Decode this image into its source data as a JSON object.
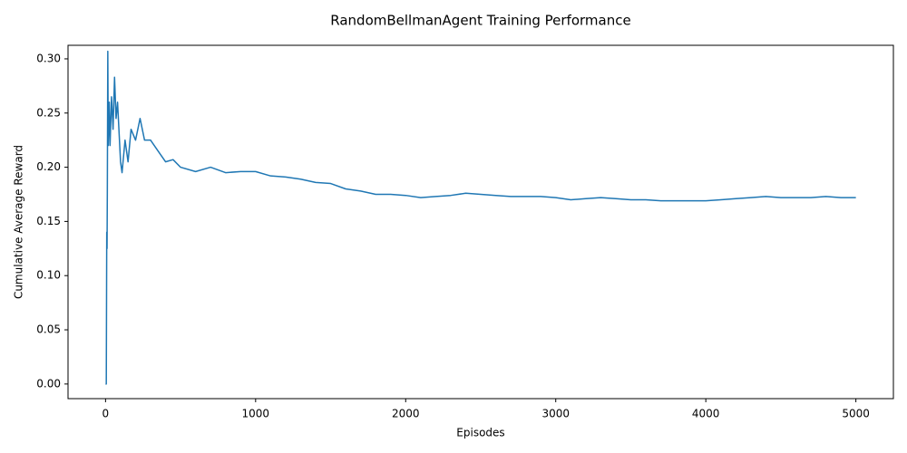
{
  "chart_data": {
    "type": "line",
    "title": "RandomBellmanAgent Training Performance",
    "x_label": "Episodes",
    "y_label": "Cumulative Average Reward",
    "color": "#1f77b4",
    "x": [
      0,
      5,
      8,
      10,
      12,
      15,
      18,
      25,
      30,
      40,
      50,
      60,
      70,
      80,
      100,
      110,
      130,
      150,
      170,
      200,
      230,
      260,
      300,
      350,
      400,
      450,
      500,
      600,
      700,
      800,
      900,
      1000,
      1100,
      1200,
      1300,
      1400,
      1500,
      1600,
      1700,
      1800,
      1900,
      2000,
      2100,
      2200,
      2300,
      2400,
      2500,
      2600,
      2700,
      2800,
      2900,
      3000,
      3100,
      3200,
      3300,
      3400,
      3500,
      3600,
      3700,
      3800,
      3900,
      4000,
      4100,
      4200,
      4300,
      4400,
      4500,
      4600,
      4700,
      4800,
      4900,
      5000
    ],
    "values": [
      0,
      0,
      0.14,
      0.125,
      0.18,
      0.307,
      0.22,
      0.26,
      0.22,
      0.265,
      0.235,
      0.283,
      0.245,
      0.26,
      0.205,
      0.195,
      0.225,
      0.205,
      0.235,
      0.225,
      0.245,
      0.225,
      0.225,
      0.215,
      0.205,
      0.207,
      0.2,
      0.196,
      0.2,
      0.195,
      0.196,
      0.196,
      0.192,
      0.191,
      0.189,
      0.186,
      0.185,
      0.18,
      0.178,
      0.175,
      0.175,
      0.174,
      0.172,
      0.173,
      0.174,
      0.176,
      0.175,
      0.174,
      0.173,
      0.173,
      0.173,
      0.172,
      0.17,
      0.171,
      0.172,
      0.171,
      0.17,
      0.17,
      0.169,
      0.169,
      0.169,
      0.169,
      0.17,
      0.171,
      0.172,
      0.173,
      0.172,
      0.172,
      0.172,
      0.173,
      0.172,
      0.172
    ],
    "xlim": [
      -250,
      5250
    ],
    "ylim": [
      -0.0135,
      0.3125
    ],
    "xticks": [
      0,
      1000,
      2000,
      3000,
      4000,
      5000
    ],
    "yticks": [
      {
        "value": 0,
        "label": "0.00"
      },
      {
        "value": 0.05,
        "label": "0.05"
      },
      {
        "value": 0.1,
        "label": "0.10"
      },
      {
        "value": 0.15,
        "label": "0.15"
      },
      {
        "value": 0.2,
        "label": "0.20"
      },
      {
        "value": 0.25,
        "label": "0.25"
      },
      {
        "value": 0.3,
        "label": "0.30"
      }
    ],
    "grid": false
  }
}
